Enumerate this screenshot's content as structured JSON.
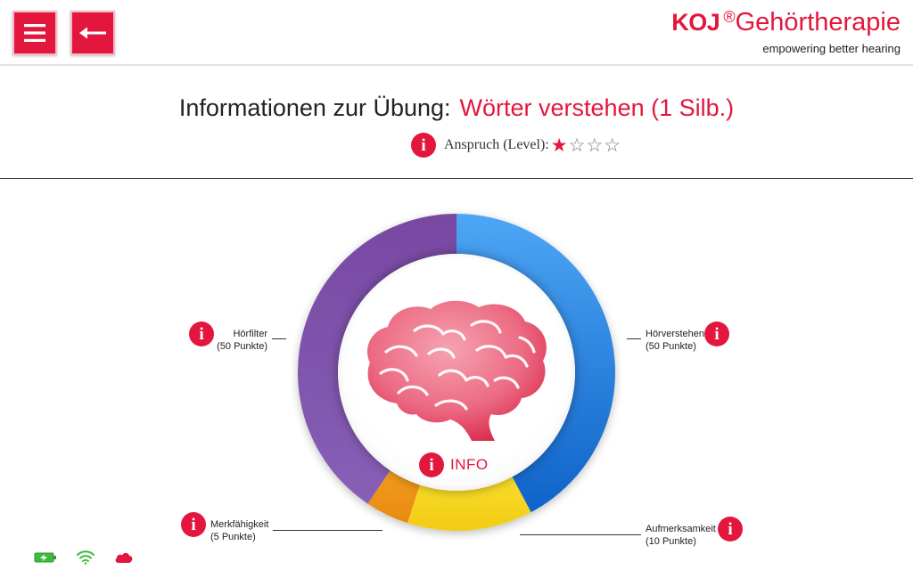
{
  "header": {
    "brand": {
      "logo": "KOJ",
      "registered": "®",
      "name": "Gehörtherapie",
      "tagline": "empowering better hearing"
    },
    "menu_icon": "hamburger-icon",
    "back_icon": "arrow-left-icon"
  },
  "exercise": {
    "label": "Informationen zur Übung:",
    "name": "Wörter verstehen (1 Silb.)",
    "level_label": "Anspruch (Level):",
    "level": 1,
    "level_max": 4
  },
  "wheel": {
    "center_icon": "brain-icon",
    "info_label": "INFO",
    "segments": [
      {
        "name": "Hörverstehen",
        "points_label": "(50 Punkte)",
        "points": 50,
        "color": "#1e7fe0"
      },
      {
        "name": "Aufmerksamkeit",
        "points_label": "(10 Punkte)",
        "points": 10,
        "color": "#f5d21d"
      },
      {
        "name": "Merkfähigkeit",
        "points_label": "(5 Punkte)",
        "points": 5,
        "color": "#ee9518"
      },
      {
        "name": "Hörfilter",
        "points_label": "(50 Punkte)",
        "points": 50,
        "color": "#7b4aa6"
      }
    ]
  },
  "colors": {
    "accent": "#e3173e"
  },
  "status_icons": [
    "battery-charging-icon",
    "wifi-icon",
    "cloud-icon"
  ]
}
